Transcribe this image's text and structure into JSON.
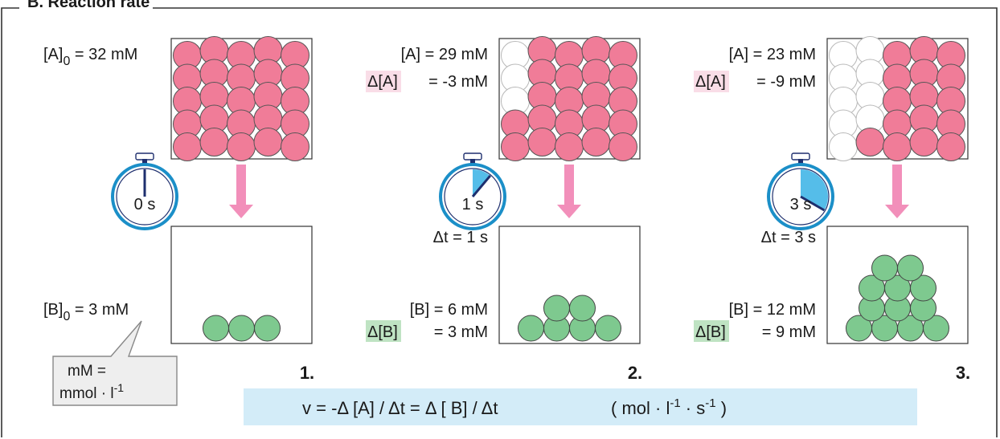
{
  "title": "B. Reaction rate",
  "colors": {
    "reactant": "#f07c98",
    "reactant_empty": "#ffffff",
    "product": "#7ec98f",
    "arrow": "#f28fba",
    "hl_a": "#f9dde7",
    "hl_b": "#bfe3c3",
    "formula_bg": "#d3ecf8",
    "stopwatch_ring": "#1b8fc8",
    "stopwatch_sector": "#55bde9",
    "stopwatch_hand": "#1e2f6e"
  },
  "panels": [
    {
      "number": "1.",
      "time": "0 s",
      "a_label": "[A]",
      "a_sub": "0",
      "a_value": "= 32 mM",
      "da_label": "",
      "da_value": "",
      "dt_text": "",
      "b_label": "[B]",
      "b_sub": "0",
      "b_value": "= 3 mM",
      "db_label": "",
      "db_value": "",
      "consumed_molecules": 0,
      "product_molecules": 3,
      "elapsed_seconds": 0
    },
    {
      "number": "2.",
      "time": "1 s",
      "a_label": "[A]",
      "a_sub": "",
      "a_value": "= 29 mM",
      "da_label": "Δ[A]",
      "da_value": "= -3 mM",
      "dt_text": "Δt = 1 s",
      "b_label": "[B]",
      "b_sub": "",
      "b_value": "= 6 mM",
      "db_label": "Δ[B]",
      "db_value": "= 3 mM",
      "consumed_molecules": 3,
      "product_molecules": 6,
      "elapsed_seconds": 1
    },
    {
      "number": "3.",
      "time": "3 s",
      "a_label": "[A]",
      "a_sub": "",
      "a_value": "= 23 mM",
      "da_label": "Δ[A]",
      "da_value": "= -9 mM",
      "dt_text": "Δt = 3 s",
      "b_label": "[B]",
      "b_sub": "",
      "b_value": "= 12 mM",
      "db_label": "Δ[B]",
      "db_value": "= 9 mM",
      "consumed_molecules": 9,
      "product_molecules": 12,
      "elapsed_seconds": 3
    }
  ],
  "callout": {
    "line1": "mM =",
    "line2": "mmol · l",
    "sup": "-1"
  },
  "formula": {
    "main": "v = -Δ [A] / Δt = Δ [ B] / Δt",
    "units_open": "( mol · l",
    "sup1": "-1",
    "units_mid": " · s",
    "sup2": "-1",
    "units_close": ")"
  }
}
